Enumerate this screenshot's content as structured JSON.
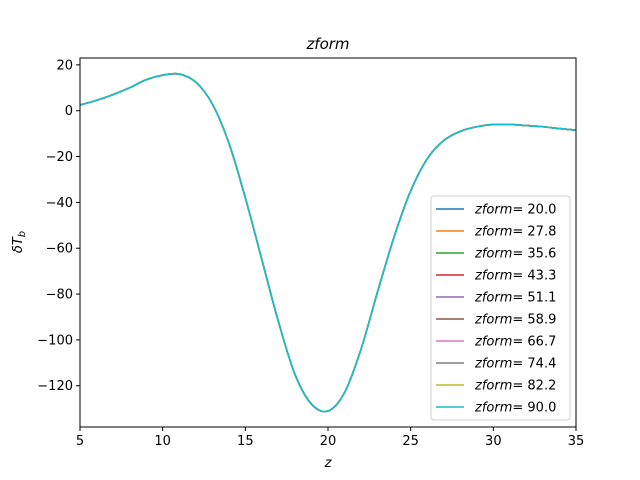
{
  "chart_data": {
    "type": "line",
    "title": "zform",
    "xlabel": "z",
    "ylabel_main": "δT",
    "ylabel_sub": "b",
    "xlim": [
      5,
      35
    ],
    "ylim": [
      -138,
      23
    ],
    "xticks": [
      5,
      10,
      15,
      20,
      25,
      30,
      35
    ],
    "yticks": [
      20,
      0,
      -20,
      -40,
      -60,
      -80,
      -100,
      -120
    ],
    "ytick_labels": [
      "20",
      "0",
      "−20",
      "−40",
      "−60",
      "−80",
      "−100",
      "−120"
    ],
    "grid": false,
    "legend_placement": "lower right",
    "legend_prefix": "zform",
    "x": [
      5,
      6,
      7,
      8,
      9,
      10,
      11,
      12,
      13,
      14,
      15,
      16,
      17,
      18,
      19,
      20,
      21,
      22,
      23,
      24,
      25,
      26,
      27,
      28,
      29,
      30,
      31,
      32,
      33,
      34,
      35
    ],
    "series": [
      {
        "name": "= 20.0",
        "color": "#1f77b4"
      },
      {
        "name": "= 27.8",
        "color": "#ff7f0e"
      },
      {
        "name": "= 35.6",
        "color": "#2ca02c"
      },
      {
        "name": "= 43.3",
        "color": "#d62728"
      },
      {
        "name": "= 51.1",
        "color": "#9467bd"
      },
      {
        "name": "= 58.9",
        "color": "#8c564b"
      },
      {
        "name": "= 66.7",
        "color": "#e377c2"
      },
      {
        "name": "= 74.4",
        "color": "#7f7f7f"
      },
      {
        "name": "= 82.2",
        "color": "#bcbd22"
      },
      {
        "name": "= 90.0",
        "color": "#17becf"
      }
    ],
    "y": [
      2.5,
      4.5,
      7,
      10,
      13.5,
      15.5,
      16,
      12.5,
      3,
      -14,
      -38,
      -65,
      -92,
      -115,
      -128,
      -131,
      -123,
      -104,
      -79,
      -55,
      -35,
      -21,
      -13,
      -9,
      -7,
      -6,
      -6,
      -6.5,
      -7,
      -7.8,
      -8.5
    ]
  }
}
